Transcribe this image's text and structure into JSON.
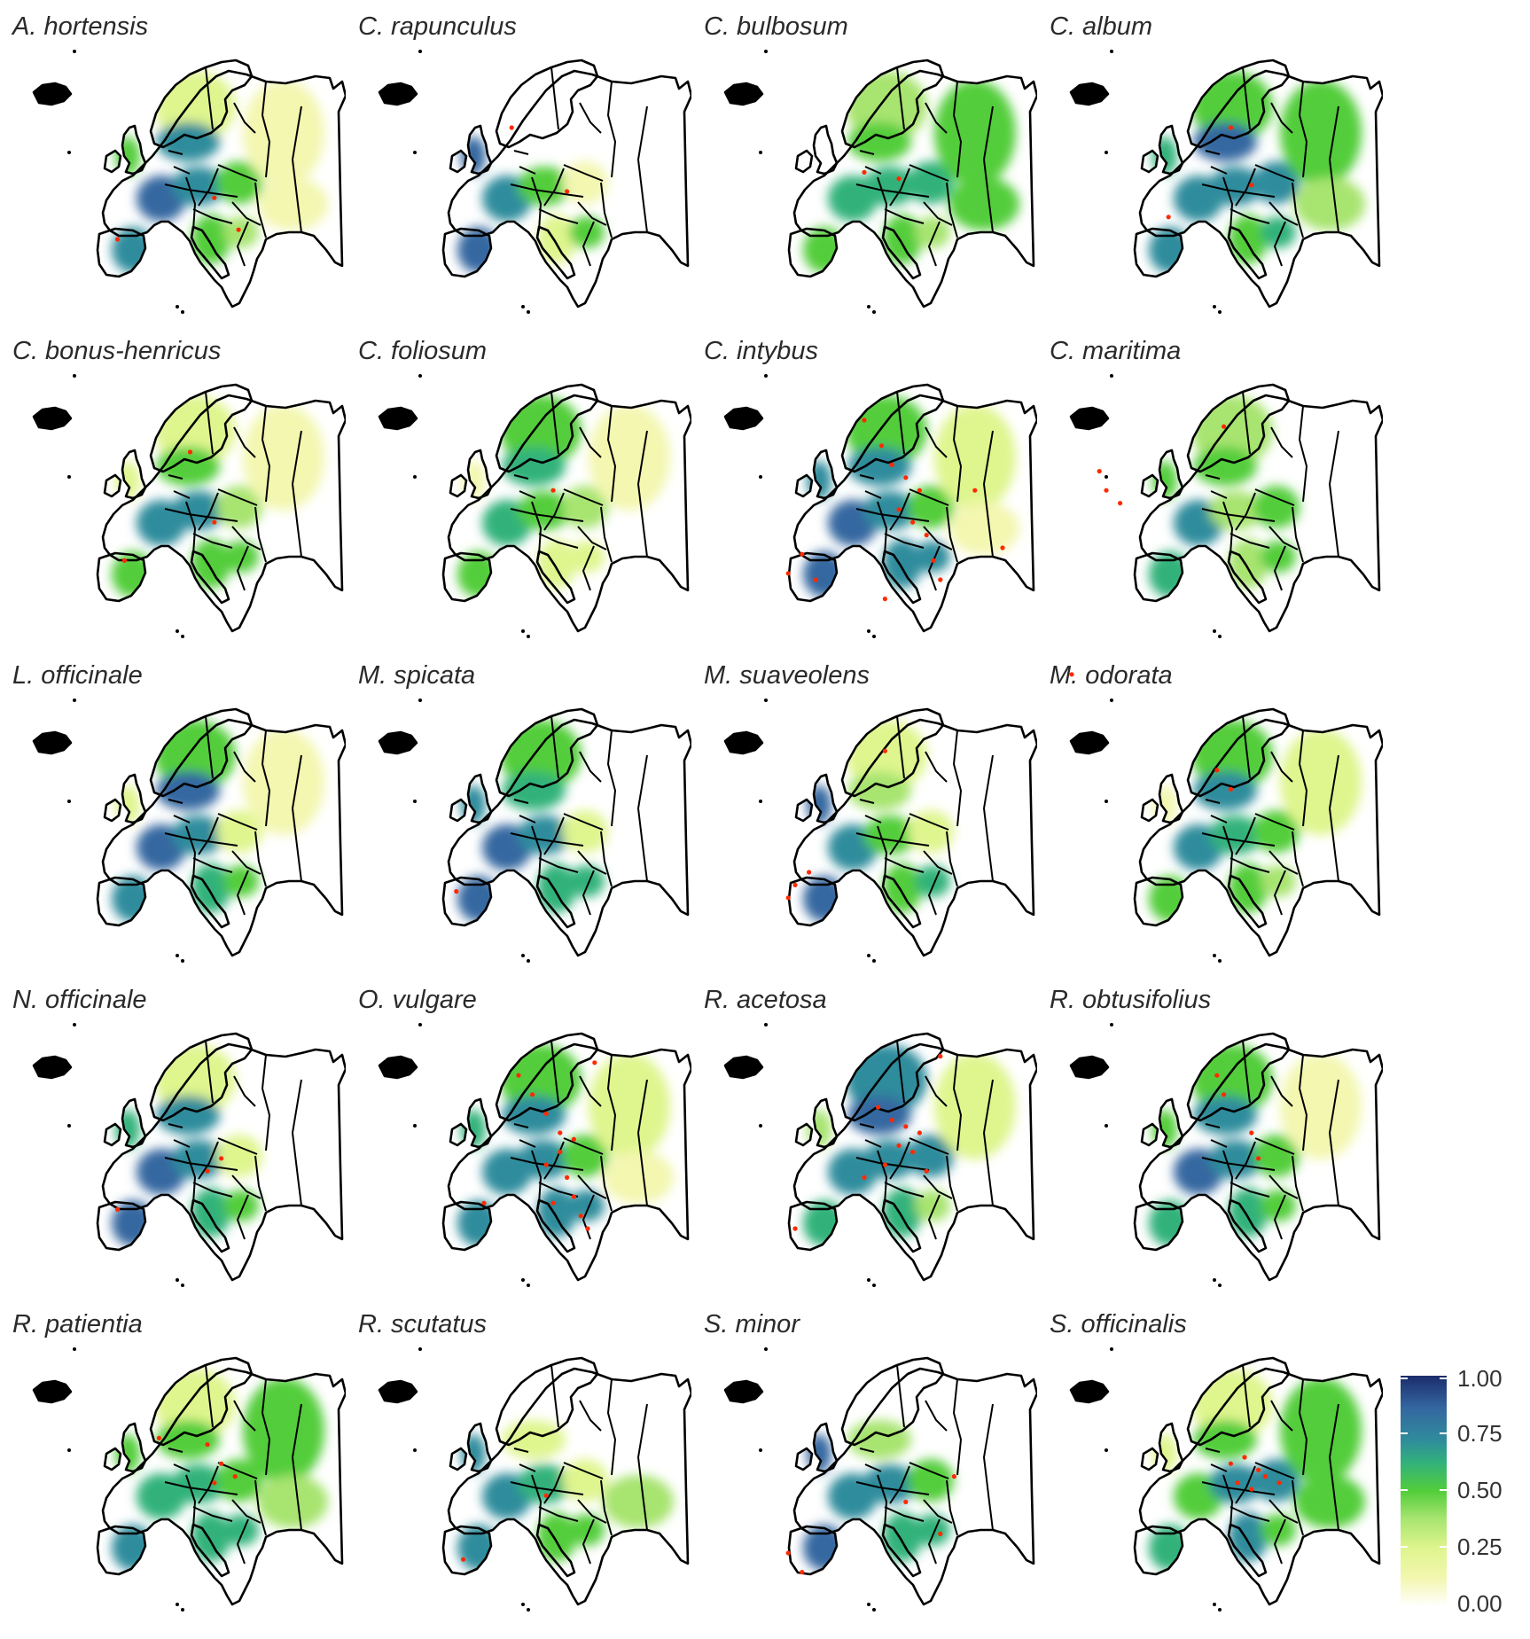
{
  "panels": [
    {
      "title": "A. hortensis",
      "suit": [
        0.12,
        0.25,
        0.72,
        0.82,
        0.78,
        0.55,
        0.75,
        0.5,
        0.1,
        0.45,
        0.35,
        0.1
      ],
      "points": [
        [
          0.34,
          0.75
        ],
        [
          0.69,
          0.72
        ],
        [
          0.62,
          0.62
        ]
      ]
    },
    {
      "title": "C. rapunculus",
      "suit": [
        0.0,
        0.0,
        0.0,
        0.75,
        0.45,
        0.1,
        0.85,
        0.25,
        0.0,
        0.82,
        0.55,
        0.0
      ],
      "points": [
        [
          0.48,
          0.4
        ],
        [
          0.64,
          0.6
        ]
      ]
    },
    {
      "title": "C. bulbosum",
      "suit": [
        0.45,
        0.35,
        0.45,
        0.6,
        0.65,
        0.6,
        0.45,
        0.55,
        0.55,
        0.0,
        0.35,
        0.45
      ],
      "points": [
        [
          0.5,
          0.54
        ],
        [
          0.6,
          0.56
        ]
      ]
    },
    {
      "title": "C. album",
      "suit": [
        0.45,
        0.55,
        0.82,
        0.8,
        0.78,
        0.7,
        0.7,
        0.55,
        0.45,
        0.65,
        0.6,
        0.4
      ],
      "points": [
        [
          0.38,
          0.68
        ],
        [
          0.56,
          0.4
        ],
        [
          0.62,
          0.58
        ]
      ]
    },
    {
      "title": "C. bonus-henricus",
      "suit": [
        0.0,
        0.3,
        0.45,
        0.7,
        0.72,
        0.35,
        0.55,
        0.55,
        0.1,
        0.3,
        0.45,
        0.0
      ],
      "points": [
        [
          0.36,
          0.74
        ],
        [
          0.62,
          0.62
        ],
        [
          0.55,
          0.4
        ]
      ]
    },
    {
      "title": "C. foliosum",
      "suit": [
        0.05,
        0.45,
        0.62,
        0.6,
        0.55,
        0.35,
        0.45,
        0.3,
        0.1,
        0.15,
        0.3,
        0.0
      ],
      "points": [
        [
          0.6,
          0.52
        ]
      ]
    },
    {
      "title": "C. intybus",
      "suit": [
        0.1,
        0.55,
        0.78,
        0.82,
        0.8,
        0.55,
        0.82,
        0.7,
        0.2,
        0.8,
        0.72,
        0.1
      ],
      "points": [
        [
          0.5,
          0.3
        ],
        [
          0.55,
          0.38
        ],
        [
          0.58,
          0.44
        ],
        [
          0.62,
          0.48
        ],
        [
          0.66,
          0.52
        ],
        [
          0.6,
          0.58
        ],
        [
          0.64,
          0.62
        ],
        [
          0.68,
          0.66
        ],
        [
          0.32,
          0.72
        ],
        [
          0.28,
          0.78
        ],
        [
          0.36,
          0.8
        ],
        [
          0.7,
          0.74
        ],
        [
          0.72,
          0.8
        ],
        [
          0.56,
          0.86
        ],
        [
          0.82,
          0.52
        ],
        [
          0.9,
          0.7
        ]
      ]
    },
    {
      "title": "C. maritima",
      "suit": [
        0.0,
        0.35,
        0.45,
        0.72,
        0.4,
        0.45,
        0.65,
        0.35,
        0.0,
        0.45,
        0.55,
        0.0
      ],
      "points": [
        [
          0.18,
          0.46
        ],
        [
          0.2,
          0.52
        ],
        [
          0.24,
          0.56
        ],
        [
          0.54,
          0.32
        ]
      ]
    },
    {
      "title": "L. officinale",
      "suit": [
        0.1,
        0.45,
        0.85,
        0.85,
        0.72,
        0.25,
        0.8,
        0.65,
        0.05,
        0.3,
        0.55,
        0.0
      ],
      "points": []
    },
    {
      "title": "M. spicata",
      "suit": [
        0.0,
        0.45,
        0.62,
        0.82,
        0.7,
        0.3,
        0.85,
        0.6,
        0.0,
        0.78,
        0.65,
        0.0
      ],
      "points": [
        [
          0.32,
          0.76
        ]
      ]
    },
    {
      "title": "M. suaveolens",
      "suit": [
        0.0,
        0.2,
        0.35,
        0.75,
        0.55,
        0.25,
        0.85,
        0.55,
        0.0,
        0.85,
        0.6,
        0.0
      ],
      "points": [
        [
          0.3,
          0.74
        ],
        [
          0.28,
          0.78
        ],
        [
          0.34,
          0.7
        ],
        [
          0.56,
          0.32
        ]
      ]
    },
    {
      "title": "M. odorata",
      "suit": [
        0.45,
        0.55,
        0.72,
        0.72,
        0.65,
        0.55,
        0.5,
        0.5,
        0.3,
        0.1,
        0.35,
        0.0
      ],
      "points": [
        [
          0.52,
          0.38
        ],
        [
          0.56,
          0.44
        ],
        [
          0.1,
          0.08
        ]
      ]
    },
    {
      "title": "N. officinale",
      "suit": [
        0.0,
        0.25,
        0.72,
        0.82,
        0.75,
        0.3,
        0.82,
        0.65,
        0.0,
        0.65,
        0.55,
        0.0
      ],
      "points": [
        [
          0.64,
          0.58
        ],
        [
          0.6,
          0.62
        ],
        [
          0.34,
          0.74
        ]
      ]
    },
    {
      "title": "O. vulgare",
      "suit": [
        0.0,
        0.55,
        0.72,
        0.78,
        0.72,
        0.45,
        0.78,
        0.72,
        0.25,
        0.65,
        0.7,
        0.1
      ],
      "points": [
        [
          0.5,
          0.32
        ],
        [
          0.54,
          0.38
        ],
        [
          0.58,
          0.44
        ],
        [
          0.62,
          0.5
        ],
        [
          0.66,
          0.52
        ],
        [
          0.62,
          0.56
        ],
        [
          0.58,
          0.6
        ],
        [
          0.64,
          0.64
        ],
        [
          0.66,
          0.7
        ],
        [
          0.68,
          0.76
        ],
        [
          0.7,
          0.8
        ],
        [
          0.6,
          0.72
        ],
        [
          0.4,
          0.72
        ],
        [
          0.72,
          0.28
        ]
      ]
    },
    {
      "title": "R. acetosa",
      "suit": [
        0.0,
        0.8,
        0.85,
        0.78,
        0.8,
        0.72,
        0.6,
        0.6,
        0.3,
        0.35,
        0.4,
        0.0
      ],
      "points": [
        [
          0.54,
          0.42
        ],
        [
          0.58,
          0.46
        ],
        [
          0.62,
          0.48
        ],
        [
          0.66,
          0.5
        ],
        [
          0.6,
          0.54
        ],
        [
          0.64,
          0.56
        ],
        [
          0.56,
          0.6
        ],
        [
          0.5,
          0.64
        ],
        [
          0.68,
          0.62
        ],
        [
          0.3,
          0.8
        ],
        [
          0.72,
          0.26
        ]
      ]
    },
    {
      "title": "R. obtusifolius",
      "suit": [
        0.0,
        0.55,
        0.75,
        0.85,
        0.75,
        0.5,
        0.65,
        0.6,
        0.05,
        0.55,
        0.55,
        0.0
      ],
      "points": [
        [
          0.52,
          0.32
        ],
        [
          0.54,
          0.38
        ],
        [
          0.62,
          0.5
        ],
        [
          0.64,
          0.58
        ]
      ]
    },
    {
      "title": "R. patientia",
      "suit": [
        0.0,
        0.2,
        0.45,
        0.62,
        0.65,
        0.5,
        0.7,
        0.65,
        0.45,
        0.55,
        0.6,
        0.4
      ],
      "points": [
        [
          0.46,
          0.44
        ],
        [
          0.6,
          0.46
        ],
        [
          0.64,
          0.52
        ],
        [
          0.68,
          0.56
        ],
        [
          0.62,
          0.58
        ]
      ]
    },
    {
      "title": "R. scutatus",
      "suit": [
        0.0,
        0.0,
        0.25,
        0.72,
        0.65,
        0.2,
        0.75,
        0.5,
        0.0,
        0.72,
        0.55,
        0.35
      ],
      "points": [
        [
          0.58,
          0.62
        ],
        [
          0.34,
          0.82
        ]
      ]
    },
    {
      "title": "S. minor",
      "suit": [
        0.0,
        0.0,
        0.35,
        0.75,
        0.7,
        0.45,
        0.85,
        0.65,
        0.0,
        0.82,
        0.65,
        0.0
      ],
      "points": [
        [
          0.28,
          0.8
        ],
        [
          0.32,
          0.86
        ],
        [
          0.62,
          0.64
        ],
        [
          0.72,
          0.74
        ],
        [
          0.76,
          0.56
        ]
      ]
    },
    {
      "title": "S. officinalis",
      "suit": [
        0.3,
        0.3,
        0.5,
        0.55,
        0.8,
        0.75,
        0.6,
        0.7,
        0.55,
        0.2,
        0.55,
        0.55
      ],
      "points": [
        [
          0.56,
          0.52
        ],
        [
          0.6,
          0.5
        ],
        [
          0.64,
          0.54
        ],
        [
          0.66,
          0.56
        ],
        [
          0.58,
          0.58
        ],
        [
          0.7,
          0.58
        ],
        [
          0.62,
          0.6
        ]
      ]
    }
  ],
  "legend": {
    "labels": [
      "1.00",
      "0.75",
      "0.50",
      "0.25",
      "0.00"
    ],
    "colors": [
      "#ffffff",
      "#f3f7b0",
      "#dff58e",
      "#a7e470",
      "#52cd3a",
      "#33b27a",
      "#2f8c9c",
      "#3467a0",
      "#1b2c6b"
    ],
    "occurrence_color": "#ff2a00"
  }
}
